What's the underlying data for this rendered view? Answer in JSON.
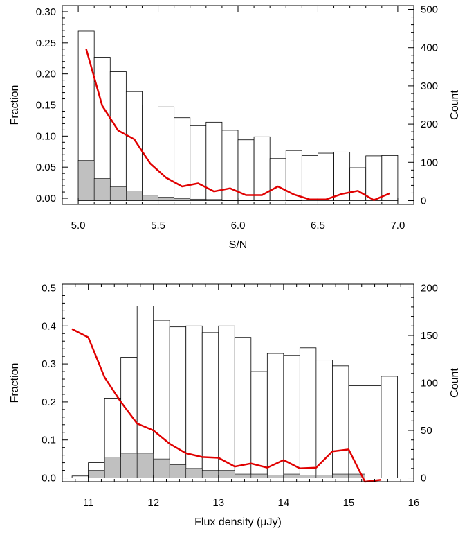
{
  "chart_data": [
    {
      "type": "bar",
      "xlabel": "S/N",
      "ylabel_left": "Fraction",
      "ylabel_right": "Count",
      "xlim": [
        4.9,
        7.1
      ],
      "ylim_left": [
        -0.01,
        0.31
      ],
      "ylim_right": [
        -10,
        510
      ],
      "xticks": [
        5.0,
        5.5,
        6.0,
        6.5,
        7.0
      ],
      "xtick_labels": [
        "5.0",
        "5.5",
        "6.0",
        "6.5",
        "7.0"
      ],
      "yticks_left": [
        0.0,
        0.05,
        0.1,
        0.15,
        0.2,
        0.25,
        0.3
      ],
      "ytick_labels_left": [
        "0.00",
        "0.05",
        "0.10",
        "0.15",
        "0.20",
        "0.25",
        "0.30"
      ],
      "yticks_right": [
        0,
        100,
        200,
        300,
        400,
        500
      ],
      "ytick_labels_right": [
        "0",
        "100",
        "200",
        "300",
        "400",
        "500"
      ],
      "bin_edges": [
        5.0,
        5.1,
        5.2,
        5.3,
        5.4,
        5.5,
        5.6,
        5.7,
        5.8,
        5.9,
        6.0,
        6.1,
        6.2,
        6.3,
        6.4,
        6.5,
        6.6,
        6.7,
        6.8,
        6.9,
        7.0
      ],
      "counts": [
        443,
        375,
        337,
        285,
        250,
        245,
        217,
        196,
        205,
        184,
        159,
        167,
        110,
        131,
        118,
        124,
        127,
        86,
        117,
        118
      ],
      "shaded_counts": [
        105,
        58,
        36,
        25,
        14,
        9,
        6,
        4,
        3,
        1,
        1,
        1,
        0,
        1,
        0,
        0,
        0,
        0,
        0,
        0
      ],
      "fraction": {
        "x": [
          5.05,
          5.15,
          5.25,
          5.35,
          5.45,
          5.55,
          5.65,
          5.75,
          5.85,
          5.95,
          6.05,
          6.15,
          6.25,
          6.35,
          6.45,
          6.55,
          6.65,
          6.75,
          6.85,
          6.95
        ],
        "y": [
          0.24,
          0.149,
          0.109,
          0.095,
          0.056,
          0.033,
          0.019,
          0.024,
          0.011,
          0.016,
          0.005,
          0.005,
          0.019,
          0.006,
          -0.002,
          -0.002,
          0.007,
          0.012,
          -0.003,
          0.008
        ]
      }
    },
    {
      "type": "bar",
      "xlabel": "Flux density (μJy)",
      "ylabel_left": "Fraction",
      "ylabel_right": "Count",
      "xlim": [
        10.6,
        16.0
      ],
      "ylim_left": [
        -0.01,
        0.51
      ],
      "ylim_right": [
        -4,
        204
      ],
      "xticks": [
        11,
        12,
        13,
        14,
        15,
        16
      ],
      "xtick_labels": [
        "11",
        "12",
        "13",
        "14",
        "15",
        "16"
      ],
      "yticks_left": [
        0.0,
        0.1,
        0.2,
        0.3,
        0.4,
        0.5
      ],
      "ytick_labels_left": [
        "0.0",
        "0.1",
        "0.2",
        "0.3",
        "0.4",
        "0.5"
      ],
      "yticks_right": [
        0,
        50,
        100,
        150,
        200
      ],
      "ytick_labels_right": [
        "0",
        "50",
        "100",
        "150",
        "200"
      ],
      "bin_edges": [
        10.75,
        11.0,
        11.25,
        11.5,
        11.75,
        12.0,
        12.25,
        12.5,
        12.75,
        13.0,
        13.25,
        13.5,
        13.75,
        14.0,
        14.25,
        14.5,
        14.75,
        15.0,
        15.25,
        15.5,
        15.75
      ],
      "counts": [
        2,
        16,
        84,
        127,
        181,
        166,
        159,
        160,
        153,
        160,
        148,
        112,
        131,
        129,
        137,
        124,
        118,
        97,
        97,
        107
      ],
      "shaded_counts": [
        0,
        8,
        22,
        26,
        26,
        20,
        14,
        10,
        8,
        8,
        4,
        4,
        3,
        4,
        3,
        3,
        4,
        4,
        0,
        0
      ],
      "fraction": {
        "x": [
          10.75,
          11.0,
          11.25,
          11.5,
          11.75,
          12.0,
          12.25,
          12.5,
          12.75,
          13.0,
          13.25,
          13.5,
          13.75,
          14.0,
          14.25,
          14.5,
          14.75,
          15.0,
          15.25,
          15.5
        ],
        "y": [
          0.392,
          0.37,
          0.265,
          0.2,
          0.143,
          0.125,
          0.09,
          0.065,
          0.055,
          0.053,
          0.03,
          0.038,
          0.027,
          0.047,
          0.025,
          0.027,
          0.07,
          0.075,
          -0.01,
          -0.005
        ]
      }
    }
  ]
}
